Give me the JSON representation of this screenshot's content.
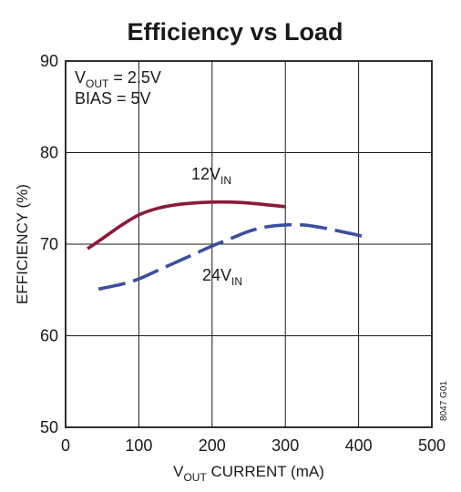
{
  "chart_data": {
    "type": "line",
    "title": "Efficiency vs Load",
    "xlabel": {
      "main": "V",
      "sub": "OUT",
      "rest": " CURRENT (mA)"
    },
    "ylabel": "EFFICIENCY (%)",
    "xlim": [
      0,
      500
    ],
    "ylim": [
      50,
      90
    ],
    "xticks": [
      0,
      100,
      200,
      300,
      400,
      500
    ],
    "yticks": [
      50,
      60,
      70,
      80,
      90
    ],
    "xtick_labels": [
      "0",
      "100",
      "200",
      "300",
      "400",
      "500"
    ],
    "ytick_labels": [
      "50",
      "60",
      "70",
      "80",
      "90"
    ],
    "grid": true,
    "annotations": {
      "vout": {
        "main": "V",
        "sub": "OUT",
        "rest": " = 2.5V"
      },
      "bias": "BIAS = 5V",
      "code": "8047 G01"
    },
    "series": [
      {
        "name": {
          "main": "12V",
          "sub": "IN"
        },
        "color": "#8b1a3a",
        "dash": "solid",
        "x": [
          30,
          50,
          75,
          100,
          125,
          150,
          175,
          200,
          225,
          250,
          275,
          300
        ],
        "y": [
          69.5,
          70.6,
          72.0,
          73.2,
          73.9,
          74.3,
          74.5,
          74.6,
          74.6,
          74.5,
          74.3,
          74.1
        ]
      },
      {
        "name": {
          "main": "24V",
          "sub": "IN"
        },
        "color": "#3a4f9e",
        "dash": "dashed",
        "x": [
          45,
          75,
          100,
          125,
          150,
          175,
          200,
          225,
          250,
          275,
          300,
          325,
          350,
          375,
          410
        ],
        "y": [
          65.1,
          65.6,
          66.2,
          67.1,
          68.0,
          68.9,
          69.8,
          70.6,
          71.4,
          71.9,
          72.1,
          72.1,
          71.8,
          71.4,
          70.8
        ]
      }
    ]
  }
}
